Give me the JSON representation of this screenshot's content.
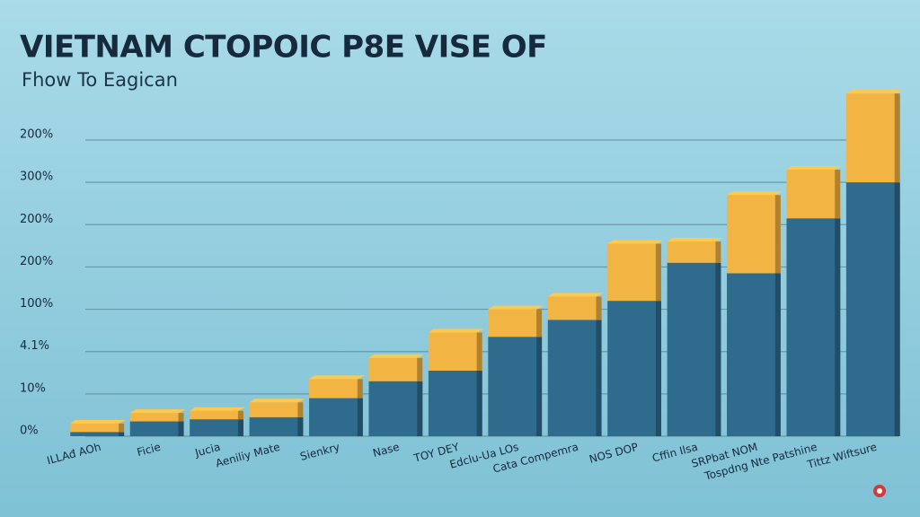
{
  "chart_data": {
    "type": "stacked_bar",
    "title": "VIETNAM CTOPOIC P8E VISE OF",
    "subtitle": "Fhow To Eagican",
    "categories": [
      "ILLAđ AOh",
      "Ficie",
      "Jucia",
      "Aeniliy Mate",
      "Sienkry",
      "Nase",
      "TOY DEY",
      "Edclu-Ua LOs",
      "Cata Compemra",
      "NOS DOP",
      "Cffin Ilsa",
      "SRPbat NOM",
      "Tospdng Nte Patshine",
      "Tittz Wiftsure"
    ],
    "series": [
      {
        "color": "#2f6b8d",
        "values": [
          0.1,
          0.35,
          0.4,
          0.45,
          0.9,
          1.3,
          1.55,
          2.35,
          2.75,
          3.2,
          4.1,
          3.85,
          5.15,
          6.0
        ]
      },
      {
        "color": "#f2b443",
        "values": [
          0.2,
          0.2,
          0.2,
          0.35,
          0.45,
          0.55,
          0.9,
          0.65,
          0.55,
          1.35,
          0.5,
          1.85,
          1.15,
          2.1
        ]
      }
    ],
    "ylim": [
      0,
      8.4
    ],
    "yticks": [
      {
        "value": 0,
        "label": "0%"
      },
      {
        "value": 1,
        "label": "10%"
      },
      {
        "value": 2,
        "label": "4.1%"
      },
      {
        "value": 3,
        "label": "100%"
      },
      {
        "value": 4,
        "label": "200%"
      },
      {
        "value": 5,
        "label": "200%"
      },
      {
        "value": 6,
        "label": "300%"
      },
      {
        "value": 7,
        "label": "200%"
      }
    ],
    "grid": true
  }
}
